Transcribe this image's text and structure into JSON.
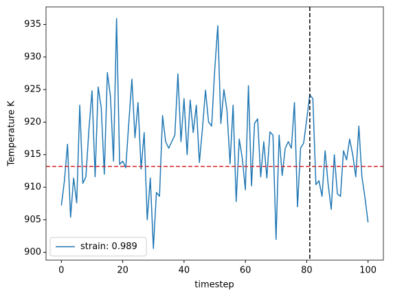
{
  "chart_data": {
    "type": "line",
    "xlabel": "timestep",
    "ylabel": "Temperature K",
    "x": [
      0,
      1,
      2,
      3,
      4,
      5,
      6,
      7,
      8,
      9,
      10,
      11,
      12,
      13,
      14,
      15,
      16,
      17,
      18,
      19,
      20,
      21,
      22,
      23,
      24,
      25,
      26,
      27,
      28,
      29,
      30,
      31,
      32,
      33,
      34,
      35,
      36,
      37,
      38,
      39,
      40,
      41,
      42,
      43,
      44,
      45,
      46,
      47,
      48,
      49,
      50,
      51,
      52,
      53,
      54,
      55,
      56,
      57,
      58,
      59,
      60,
      61,
      62,
      63,
      64,
      65,
      66,
      67,
      68,
      69,
      70,
      71,
      72,
      73,
      74,
      75,
      76,
      77,
      78,
      79,
      80,
      81,
      82,
      83,
      84,
      85,
      86,
      87,
      88,
      89,
      90,
      91,
      92,
      93,
      94,
      95,
      96,
      97,
      98,
      99,
      100
    ],
    "series": [
      {
        "name": "strain: 0.989",
        "color": "#1f77b4",
        "values": [
          907.2,
          911,
          916.6,
          905.4,
          911.4,
          907.6,
          922.6,
          910.6,
          911.6,
          919,
          924.8,
          911.6,
          925.4,
          922.2,
          912,
          927.6,
          924,
          914,
          935.9,
          913.5,
          914,
          913,
          920,
          926.6,
          917.6,
          923,
          912.8,
          918.4,
          905,
          911.4,
          900.6,
          909.2,
          908.6,
          921,
          917,
          916,
          917,
          918,
          927.4,
          917,
          923.6,
          915,
          923.4,
          918.4,
          922.6,
          913.8,
          919,
          924.9,
          920,
          919.4,
          928,
          934.8,
          919.8,
          925,
          921.8,
          913.6,
          922.6,
          907.8,
          917.4,
          914.4,
          909.6,
          925.6,
          910.2,
          919.8,
          920.5,
          911.6,
          917,
          911.4,
          918.5,
          918,
          902,
          918,
          911.8,
          916,
          917,
          916,
          923,
          907,
          916,
          916.8,
          920.4,
          924.2,
          923.6,
          910.4,
          911,
          908.6,
          915.6,
          910.4,
          906.6,
          915,
          909,
          908.6,
          915.6,
          914.2,
          917.4,
          915,
          911.6,
          919.4,
          911.6,
          908.4,
          904.6
        ]
      }
    ],
    "hline": {
      "value": 913.2,
      "color": "#d62728"
    },
    "vline": {
      "value": 81,
      "color": "#000000"
    },
    "xlim": [
      -5,
      105
    ],
    "ylim": [
      898.8,
      937.7
    ],
    "xticks": [
      0,
      20,
      40,
      60,
      80,
      100
    ],
    "yticks": [
      900,
      905,
      910,
      915,
      920,
      925,
      930,
      935
    ],
    "legend": "lower left"
  }
}
